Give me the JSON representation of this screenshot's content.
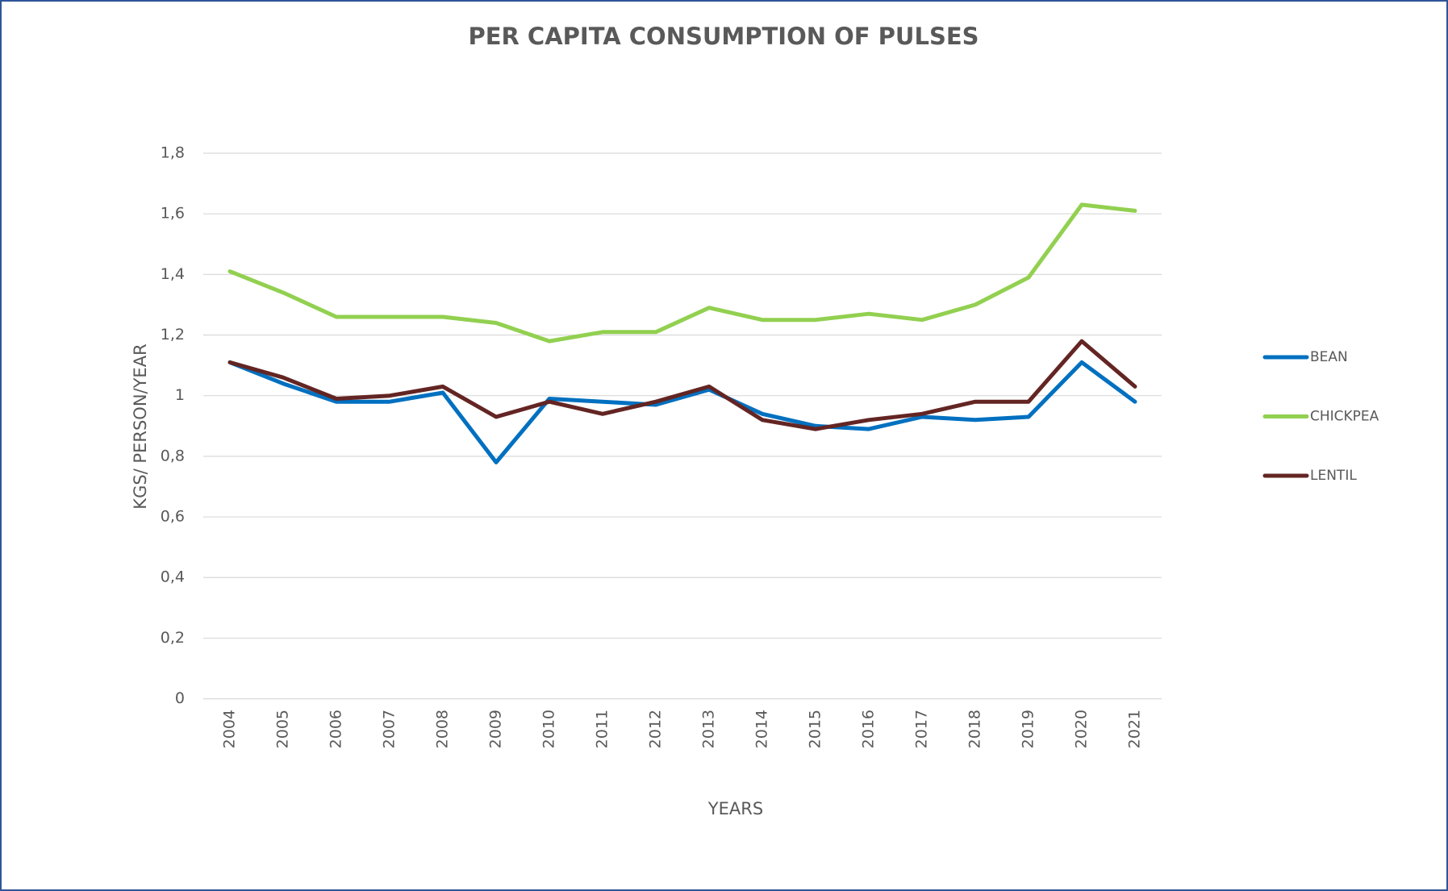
{
  "chart_data": {
    "type": "line",
    "title": "PER CAPITA CONSUMPTION OF PULSES",
    "x_label": "YEARS",
    "y_label": "KGS/ PERSON/YEAR",
    "categories": [
      "2004",
      "2005",
      "2006",
      "2007",
      "2008",
      "2009",
      "2010",
      "2011",
      "2012",
      "2013",
      "2014",
      "2015",
      "2016",
      "2017",
      "2018",
      "2019",
      "2020",
      "2021"
    ],
    "series": [
      {
        "name": "BEAN",
        "color": "#0070c0",
        "values": [
          1.11,
          1.04,
          0.98,
          0.98,
          1.01,
          0.78,
          0.99,
          0.98,
          0.97,
          1.02,
          0.94,
          0.9,
          0.89,
          0.93,
          0.92,
          0.93,
          1.11,
          0.98
        ]
      },
      {
        "name": "CHICKPEA",
        "color": "#92d050",
        "values": [
          1.41,
          1.34,
          1.26,
          1.26,
          1.26,
          1.24,
          1.18,
          1.21,
          1.21,
          1.29,
          1.25,
          1.25,
          1.27,
          1.25,
          1.3,
          1.39,
          1.63,
          1.61
        ]
      },
      {
        "name": "LENTIL",
        "color": "#632523",
        "values": [
          1.11,
          1.06,
          0.99,
          1.0,
          1.03,
          0.93,
          0.98,
          0.94,
          0.98,
          1.03,
          0.92,
          0.89,
          0.92,
          0.94,
          0.98,
          0.98,
          1.18,
          1.03
        ]
      }
    ],
    "ylim": [
      0,
      1.8
    ],
    "yticks": [
      0,
      {
        "value": 0.2,
        "label": "0,2"
      },
      {
        "value": 0.4,
        "label": "0,4"
      },
      {
        "value": 0.6,
        "label": "0,6"
      },
      {
        "value": 0.8,
        "label": "0,8"
      },
      1,
      {
        "value": 1.2,
        "label": "1,2"
      },
      {
        "value": 1.4,
        "label": "1,4"
      },
      {
        "value": 1.6,
        "label": "1,6"
      },
      {
        "value": 1.8,
        "label": "1,8"
      }
    ],
    "grid": true,
    "legend": "right"
  }
}
